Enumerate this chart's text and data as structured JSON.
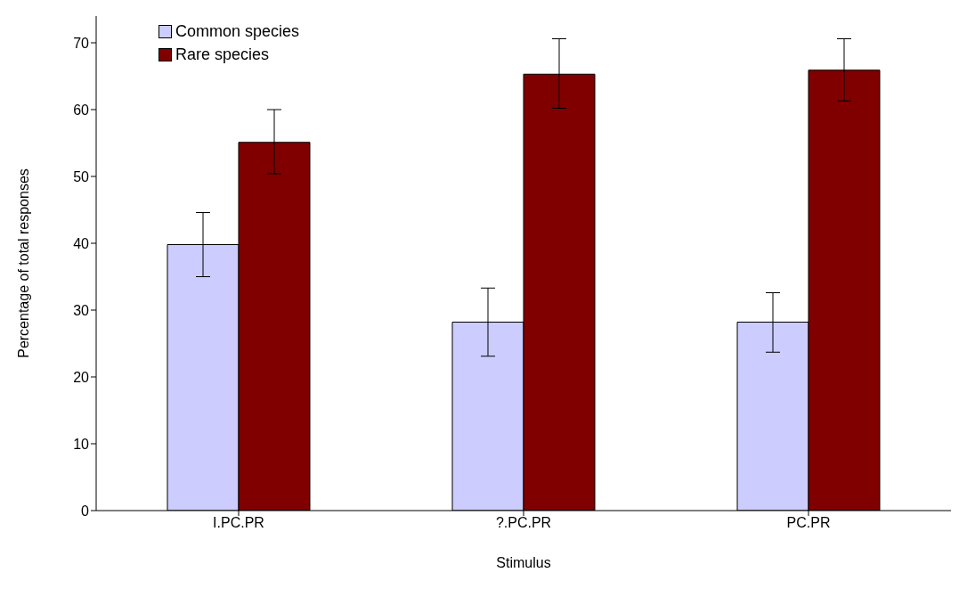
{
  "chart_data": {
    "type": "bar",
    "xlabel": "Stimulus",
    "ylabel": "Percentage of total responses",
    "categories": [
      "I.PC.PR",
      "?.PC.PR",
      "PC.PR"
    ],
    "series": [
      {
        "name": "Common species",
        "color": "#ccccff",
        "values": [
          39.8,
          28.2,
          28.2
        ],
        "errors": [
          [
            35.0,
            44.6
          ],
          [
            23.1,
            33.3
          ],
          [
            23.7,
            32.6
          ]
        ]
      },
      {
        "name": "Rare species",
        "color": "#800000",
        "values": [
          55.1,
          65.3,
          65.9
        ],
        "errors": [
          [
            50.4,
            60.0
          ],
          [
            60.2,
            70.6
          ],
          [
            61.3,
            70.6
          ]
        ]
      }
    ],
    "ylim": [
      0,
      74
    ],
    "yticks": [
      0,
      10,
      20,
      30,
      40,
      50,
      60,
      70
    ],
    "grid": false,
    "legend": "top left"
  }
}
